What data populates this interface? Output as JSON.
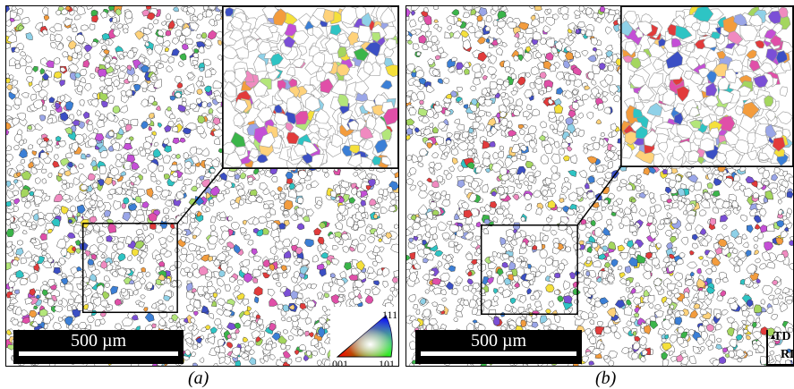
{
  "panels": [
    {
      "id": "a",
      "caption": "(a)",
      "scalebar": "500 µm"
    },
    {
      "id": "b",
      "caption": "(b)",
      "scalebar": "500 µm"
    }
  ],
  "legend": {
    "top": "111",
    "left": "001",
    "right": "101"
  },
  "axes": {
    "vertical": "TD",
    "horizontal": "RD"
  },
  "palette": [
    "#e23b3b",
    "#f39c3d",
    "#f5e03b",
    "#a4d65e",
    "#3bb54a",
    "#2ec4c4",
    "#3b7fd6",
    "#3b4fc4",
    "#7b4fd6",
    "#c44fd6",
    "#e04fa8",
    "#f08ac0",
    "#8fd1e8",
    "#b3e67a",
    "#ffd27a",
    "#9aa6e8"
  ]
}
